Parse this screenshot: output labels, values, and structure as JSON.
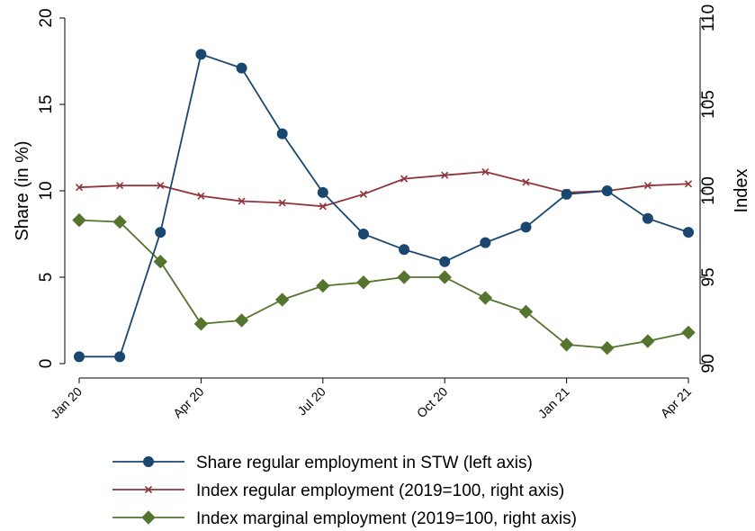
{
  "chart_data": {
    "type": "line",
    "x": [
      "Jan 20",
      "Feb 20",
      "Mar 20",
      "Apr 20",
      "May 20",
      "Jun 20",
      "Jul 20",
      "Aug 20",
      "Sep 20",
      "Oct 20",
      "Nov 20",
      "Dec 20",
      "Jan 21",
      "Feb 21",
      "Mar 21",
      "Apr 21"
    ],
    "x_tick_labels": [
      "Jan 20",
      "Apr 20",
      "Jul 20",
      "Oct 20",
      "Jan 21",
      "Apr 21"
    ],
    "ylabel_left": "Share (in %)",
    "ylabel_right": "Index",
    "ylim_left": [
      0,
      20
    ],
    "ylim_right": [
      90,
      110
    ],
    "yticks_left": [
      "0",
      "5",
      "10",
      "15",
      "20"
    ],
    "yticks_right": [
      "90",
      "95",
      "100",
      "105",
      "110"
    ],
    "grid": false,
    "legend_position": "bottom",
    "series": [
      {
        "name": "Share regular employment in STW (left axis)",
        "axis": "left",
        "color": "#1a476f",
        "marker": "circle",
        "values": [
          0.4,
          0.4,
          7.6,
          17.9,
          17.1,
          13.3,
          9.9,
          7.5,
          6.6,
          5.9,
          7.0,
          7.9,
          9.8,
          10.0,
          8.4,
          7.6
        ]
      },
      {
        "name": "Index regular employment (2019=100, right axis)",
        "axis": "right",
        "color": "#90353b",
        "marker": "x",
        "values": [
          100.2,
          100.3,
          100.3,
          99.7,
          99.4,
          99.3,
          99.1,
          99.8,
          100.7,
          100.9,
          101.1,
          100.5,
          99.9,
          100.0,
          100.3,
          100.4
        ]
      },
      {
        "name": "Index marginal employment (2019=100, right axis)",
        "axis": "right",
        "color": "#55752f",
        "marker": "diamond",
        "values": [
          98.3,
          98.2,
          95.9,
          92.3,
          92.5,
          93.7,
          94.5,
          94.7,
          95.0,
          95.0,
          93.8,
          93.0,
          91.1,
          90.9,
          91.3,
          91.8
        ]
      }
    ]
  }
}
